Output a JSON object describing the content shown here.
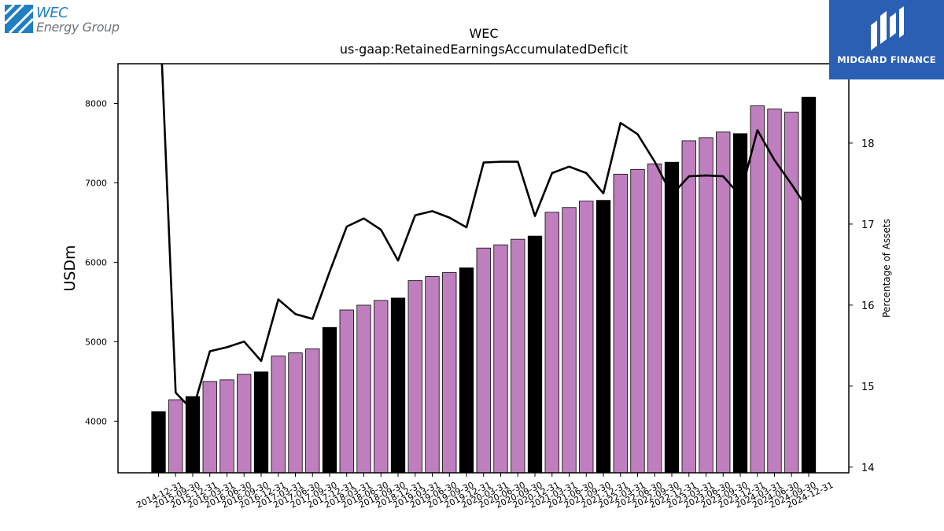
{
  "logo": {
    "line1": "WEC",
    "line2": "Energy Group"
  },
  "brand": {
    "name": "MIDGARD FINANCE",
    "color": "#2b5fb4"
  },
  "chart_data": {
    "type": "bar",
    "title": "WEC",
    "subtitle": "us-gaap:RetainedEarningsAccumulatedDeficit",
    "ylabel": "USDm",
    "y2label": "Percentage of Assets",
    "ylim": [
      3350,
      8500
    ],
    "y2lim": [
      13.93,
      18.98
    ],
    "yticks": [
      4000,
      5000,
      6000,
      7000,
      8000
    ],
    "y2ticks": [
      14,
      15,
      16,
      17,
      18
    ],
    "colors": {
      "quarter_bar": "#bf7fbf",
      "year_end_bar": "#000000",
      "line": "#000000"
    },
    "categories": [
      "2014-12-31",
      "2015-09-30",
      "2015-12-31",
      "2016-03-31",
      "2016-06-30",
      "2016-09-30",
      "2016-12-31",
      "2017-03-31",
      "2017-06-30",
      "2017-09-30",
      "2017-12-31",
      "2018-03-31",
      "2018-06-30",
      "2018-09-30",
      "2018-12-31",
      "2019-03-31",
      "2019-06-30",
      "2019-09-30",
      "2019-12-31",
      "2020-03-31",
      "2020-06-30",
      "2020-09-30",
      "2020-12-31",
      "2021-03-31",
      "2021-06-30",
      "2021-09-30",
      "2021-12-31",
      "2022-03-31",
      "2022-06-30",
      "2022-09-30",
      "2022-12-31",
      "2023-03-31",
      "2023-06-30",
      "2023-09-30",
      "2023-12-31",
      "2024-03-31",
      "2024-06-30",
      "2024-09-30",
      "2024-12-31"
    ],
    "series": [
      {
        "type": "bar",
        "values": [
          4120,
          4270,
          4310,
          4500,
          4520,
          4590,
          4620,
          4820,
          4860,
          4910,
          5180,
          5400,
          5460,
          5520,
          5550,
          5770,
          5820,
          5870,
          5930,
          6180,
          6220,
          6290,
          6330,
          6630,
          6690,
          6770,
          6780,
          7110,
          7170,
          7240,
          7260,
          7530,
          7570,
          7640,
          7620,
          7970,
          7930,
          7890,
          8080
        ]
      },
      {
        "type": "line",
        "values": [
          20.0,
          14.92,
          14.7,
          15.43,
          15.48,
          15.55,
          15.31,
          16.07,
          15.89,
          15.83,
          16.41,
          16.97,
          17.07,
          16.93,
          16.55,
          17.11,
          17.16,
          17.08,
          16.96,
          17.76,
          17.77,
          17.77,
          17.1,
          17.63,
          17.71,
          17.63,
          17.38,
          18.25,
          18.11,
          17.77,
          17.36,
          17.59,
          17.6,
          17.59,
          17.35,
          18.16,
          17.79,
          17.49,
          17.17
        ]
      }
    ]
  }
}
